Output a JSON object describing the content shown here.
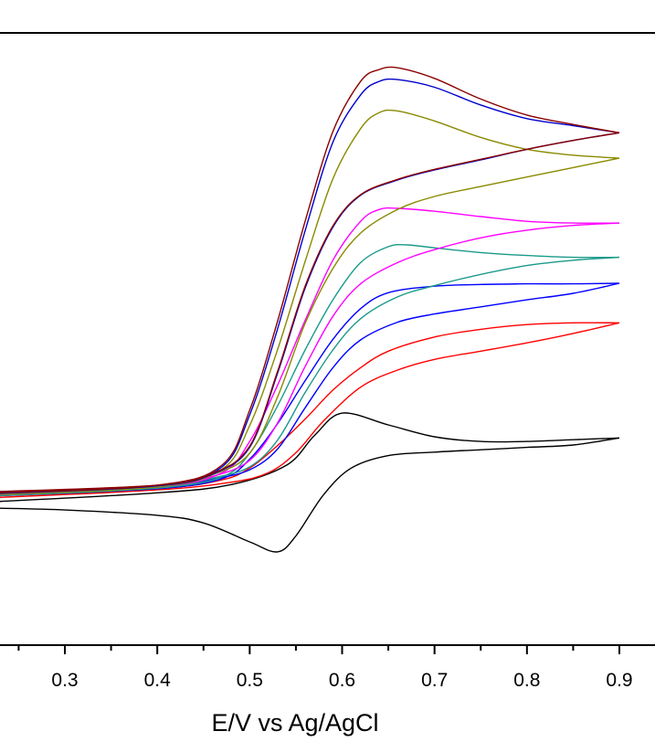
{
  "chart_data": {
    "type": "line",
    "xlabel": "E/V vs Ag/AgCl",
    "ylabel": "",
    "title": "",
    "xlim": [
      0.225,
      0.935
    ],
    "ylim": [
      0,
      1
    ],
    "x_ticks": [
      0.3,
      0.4,
      0.5,
      0.6,
      0.7,
      0.8,
      0.9
    ],
    "x_tick_labels": [
      "0.3",
      "0.4",
      "0.5",
      "0.6",
      "0.7",
      "0.8",
      "0.9"
    ],
    "grid": false,
    "legend": "none",
    "series": [
      {
        "color": "#000000",
        "forward": [
          [
            0.225,
            0.243
          ],
          [
            0.4,
            0.258
          ],
          [
            0.48,
            0.272
          ],
          [
            0.54,
            0.305
          ],
          [
            0.57,
            0.355
          ],
          [
            0.6,
            0.393
          ],
          [
            0.65,
            0.373
          ],
          [
            0.7,
            0.353
          ],
          [
            0.75,
            0.345
          ],
          [
            0.8,
            0.345
          ],
          [
            0.85,
            0.348
          ],
          [
            0.9,
            0.351
          ]
        ],
        "reverse": [
          [
            0.9,
            0.351
          ],
          [
            0.85,
            0.339
          ],
          [
            0.8,
            0.335
          ],
          [
            0.75,
            0.331
          ],
          [
            0.7,
            0.327
          ],
          [
            0.65,
            0.321
          ],
          [
            0.61,
            0.3
          ],
          [
            0.58,
            0.255
          ],
          [
            0.55,
            0.185
          ],
          [
            0.53,
            0.158
          ],
          [
            0.5,
            0.175
          ],
          [
            0.45,
            0.207
          ],
          [
            0.4,
            0.22
          ],
          [
            0.3,
            0.229
          ],
          [
            0.225,
            0.232
          ]
        ]
      },
      {
        "color": "#ff0000",
        "forward": [
          [
            0.225,
            0.253
          ],
          [
            0.4,
            0.265
          ],
          [
            0.47,
            0.28
          ],
          [
            0.5,
            0.3
          ],
          [
            0.53,
            0.338
          ],
          [
            0.56,
            0.383
          ],
          [
            0.59,
            0.432
          ],
          [
            0.62,
            0.47
          ],
          [
            0.65,
            0.498
          ],
          [
            0.7,
            0.522
          ],
          [
            0.75,
            0.535
          ],
          [
            0.8,
            0.543
          ],
          [
            0.85,
            0.546
          ],
          [
            0.9,
            0.546
          ]
        ],
        "reverse": [
          [
            0.9,
            0.546
          ],
          [
            0.85,
            0.528
          ],
          [
            0.8,
            0.512
          ],
          [
            0.75,
            0.498
          ],
          [
            0.7,
            0.484
          ],
          [
            0.66,
            0.466
          ],
          [
            0.62,
            0.437
          ],
          [
            0.58,
            0.38
          ],
          [
            0.55,
            0.326
          ],
          [
            0.52,
            0.292
          ],
          [
            0.48,
            0.276
          ],
          [
            0.4,
            0.263
          ],
          [
            0.225,
            0.25
          ]
        ]
      },
      {
        "color": "#0000ff",
        "forward": [
          [
            0.225,
            0.253
          ],
          [
            0.4,
            0.265
          ],
          [
            0.47,
            0.282
          ],
          [
            0.5,
            0.315
          ],
          [
            0.53,
            0.375
          ],
          [
            0.56,
            0.448
          ],
          [
            0.59,
            0.518
          ],
          [
            0.62,
            0.57
          ],
          [
            0.65,
            0.597
          ],
          [
            0.7,
            0.608
          ],
          [
            0.75,
            0.611
          ],
          [
            0.8,
            0.612
          ],
          [
            0.85,
            0.612
          ],
          [
            0.9,
            0.613
          ]
        ],
        "reverse": [
          [
            0.9,
            0.613
          ],
          [
            0.85,
            0.596
          ],
          [
            0.8,
            0.585
          ],
          [
            0.75,
            0.573
          ],
          [
            0.7,
            0.561
          ],
          [
            0.66,
            0.547
          ],
          [
            0.62,
            0.517
          ],
          [
            0.59,
            0.47
          ],
          [
            0.56,
            0.402
          ],
          [
            0.53,
            0.332
          ],
          [
            0.5,
            0.297
          ],
          [
            0.46,
            0.281
          ],
          [
            0.4,
            0.266
          ],
          [
            0.225,
            0.255
          ]
        ]
      },
      {
        "color": "#1a9a8a",
        "forward": [
          [
            0.225,
            0.253
          ],
          [
            0.4,
            0.266
          ],
          [
            0.47,
            0.285
          ],
          [
            0.5,
            0.325
          ],
          [
            0.53,
            0.405
          ],
          [
            0.56,
            0.5
          ],
          [
            0.59,
            0.585
          ],
          [
            0.62,
            0.648
          ],
          [
            0.65,
            0.675
          ],
          [
            0.67,
            0.678
          ],
          [
            0.7,
            0.673
          ],
          [
            0.75,
            0.665
          ],
          [
            0.8,
            0.66
          ],
          [
            0.85,
            0.657
          ],
          [
            0.9,
            0.657
          ]
        ],
        "reverse": [
          [
            0.9,
            0.657
          ],
          [
            0.85,
            0.652
          ],
          [
            0.8,
            0.643
          ],
          [
            0.75,
            0.628
          ],
          [
            0.7,
            0.609
          ],
          [
            0.66,
            0.59
          ],
          [
            0.62,
            0.553
          ],
          [
            0.59,
            0.5
          ],
          [
            0.56,
            0.428
          ],
          [
            0.53,
            0.347
          ],
          [
            0.5,
            0.302
          ],
          [
            0.46,
            0.283
          ],
          [
            0.4,
            0.267
          ],
          [
            0.225,
            0.257
          ]
        ]
      },
      {
        "color": "#ff00ff",
        "forward": [
          [
            0.225,
            0.255
          ],
          [
            0.4,
            0.268
          ],
          [
            0.47,
            0.292
          ],
          [
            0.5,
            0.345
          ],
          [
            0.53,
            0.44
          ],
          [
            0.56,
            0.55
          ],
          [
            0.59,
            0.652
          ],
          [
            0.62,
            0.718
          ],
          [
            0.64,
            0.738
          ],
          [
            0.66,
            0.74
          ],
          [
            0.7,
            0.735
          ],
          [
            0.75,
            0.726
          ],
          [
            0.8,
            0.718
          ],
          [
            0.85,
            0.715
          ],
          [
            0.9,
            0.715
          ]
        ],
        "reverse": [
          [
            0.9,
            0.715
          ],
          [
            0.85,
            0.711
          ],
          [
            0.8,
            0.703
          ],
          [
            0.75,
            0.69
          ],
          [
            0.7,
            0.67
          ],
          [
            0.66,
            0.648
          ],
          [
            0.62,
            0.612
          ],
          [
            0.59,
            0.557
          ],
          [
            0.56,
            0.472
          ],
          [
            0.53,
            0.376
          ],
          [
            0.5,
            0.313
          ],
          [
            0.46,
            0.286
          ],
          [
            0.4,
            0.269
          ],
          [
            0.225,
            0.258
          ]
        ]
      },
      {
        "color": "#8a8a00",
        "forward": [
          [
            0.225,
            0.255
          ],
          [
            0.4,
            0.268
          ],
          [
            0.47,
            0.298
          ],
          [
            0.5,
            0.372
          ],
          [
            0.53,
            0.5
          ],
          [
            0.56,
            0.65
          ],
          [
            0.59,
            0.79
          ],
          [
            0.62,
            0.875
          ],
          [
            0.64,
            0.902
          ],
          [
            0.66,
            0.905
          ],
          [
            0.7,
            0.888
          ],
          [
            0.75,
            0.86
          ],
          [
            0.8,
            0.84
          ],
          [
            0.85,
            0.83
          ],
          [
            0.9,
            0.825
          ]
        ],
        "reverse": [
          [
            0.9,
            0.825
          ],
          [
            0.85,
            0.809
          ],
          [
            0.8,
            0.793
          ],
          [
            0.75,
            0.777
          ],
          [
            0.7,
            0.76
          ],
          [
            0.66,
            0.738
          ],
          [
            0.62,
            0.698
          ],
          [
            0.59,
            0.638
          ],
          [
            0.56,
            0.545
          ],
          [
            0.53,
            0.42
          ],
          [
            0.5,
            0.325
          ],
          [
            0.46,
            0.289
          ],
          [
            0.4,
            0.27
          ],
          [
            0.225,
            0.258
          ]
        ]
      },
      {
        "color": "#0000cc",
        "forward": [
          [
            0.225,
            0.257
          ],
          [
            0.4,
            0.27
          ],
          [
            0.47,
            0.302
          ],
          [
            0.5,
            0.39
          ],
          [
            0.53,
            0.535
          ],
          [
            0.56,
            0.702
          ],
          [
            0.59,
            0.852
          ],
          [
            0.62,
            0.932
          ],
          [
            0.64,
            0.955
          ],
          [
            0.66,
            0.958
          ],
          [
            0.7,
            0.945
          ],
          [
            0.75,
            0.915
          ],
          [
            0.8,
            0.892
          ],
          [
            0.85,
            0.88
          ],
          [
            0.9,
            0.868
          ]
        ],
        "reverse": [
          [
            0.9,
            0.868
          ],
          [
            0.85,
            0.855
          ],
          [
            0.8,
            0.84
          ],
          [
            0.75,
            0.822
          ],
          [
            0.7,
            0.805
          ],
          [
            0.66,
            0.788
          ],
          [
            0.62,
            0.762
          ],
          [
            0.59,
            0.708
          ],
          [
            0.56,
            0.605
          ],
          [
            0.53,
            0.46
          ],
          [
            0.5,
            0.335
          ],
          [
            0.46,
            0.29
          ],
          [
            0.4,
            0.27
          ],
          [
            0.225,
            0.259
          ]
        ]
      },
      {
        "color": "#8b0000",
        "forward": [
          [
            0.225,
            0.258
          ],
          [
            0.4,
            0.271
          ],
          [
            0.47,
            0.305
          ],
          [
            0.5,
            0.398
          ],
          [
            0.53,
            0.548
          ],
          [
            0.56,
            0.718
          ],
          [
            0.59,
            0.87
          ],
          [
            0.62,
            0.955
          ],
          [
            0.64,
            0.975
          ],
          [
            0.66,
            0.978
          ],
          [
            0.7,
            0.96
          ],
          [
            0.75,
            0.925
          ],
          [
            0.8,
            0.898
          ],
          [
            0.85,
            0.882
          ],
          [
            0.9,
            0.868
          ]
        ],
        "reverse": [
          [
            0.9,
            0.868
          ],
          [
            0.85,
            0.855
          ],
          [
            0.8,
            0.84
          ],
          [
            0.75,
            0.823
          ],
          [
            0.7,
            0.806
          ],
          [
            0.66,
            0.789
          ],
          [
            0.62,
            0.763
          ],
          [
            0.59,
            0.71
          ],
          [
            0.56,
            0.608
          ],
          [
            0.53,
            0.463
          ],
          [
            0.5,
            0.337
          ],
          [
            0.46,
            0.291
          ],
          [
            0.4,
            0.271
          ],
          [
            0.225,
            0.26
          ]
        ]
      }
    ]
  }
}
